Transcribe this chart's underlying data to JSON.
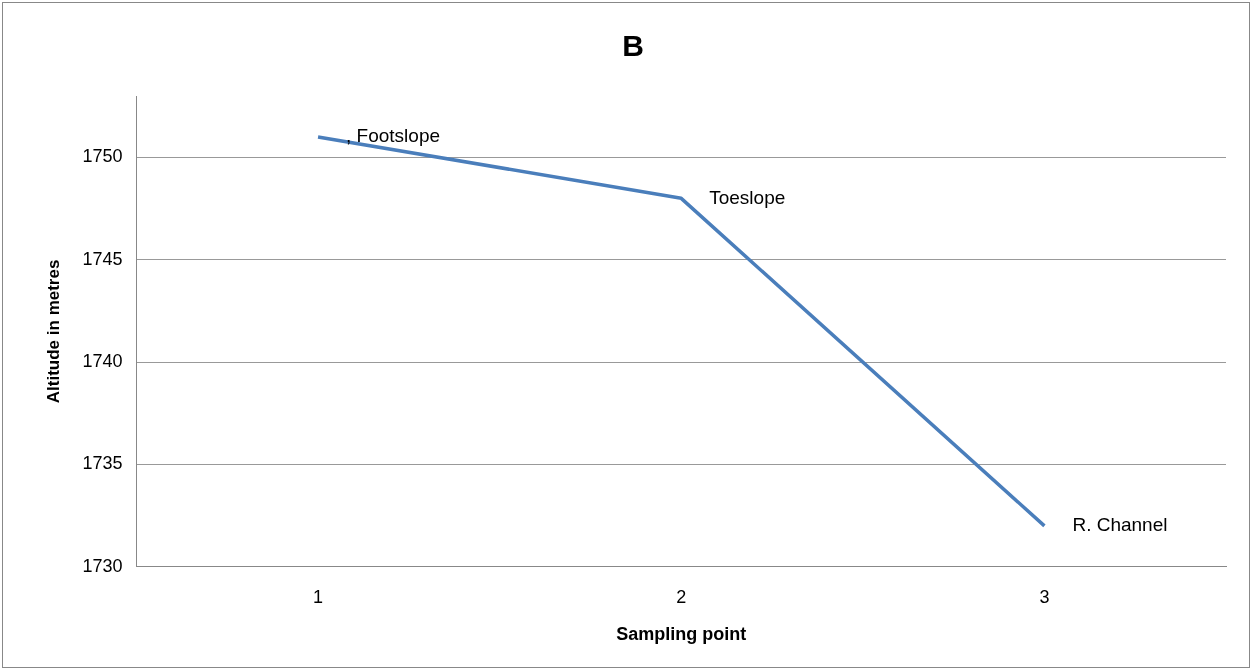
{
  "chart_data": {
    "type": "line",
    "title": "B",
    "xlabel": "Sampling point",
    "ylabel": "Altitude in metres",
    "categories": [
      "1",
      "2",
      "3"
    ],
    "series": [
      {
        "color": "#4a7ebb",
        "values": [
          1751,
          1748,
          1732
        ]
      }
    ],
    "ylim": [
      1730,
      1753
    ],
    "yticks": [
      1730,
      1735,
      1740,
      1745,
      1750
    ],
    "grid": "y",
    "legend": false,
    "marker": "none",
    "line_style": "solid",
    "annotations": [
      {
        "text": ", Footslope",
        "x": "1",
        "y": 1751
      },
      {
        "text": "Toeslope",
        "x": "2",
        "y": 1748
      },
      {
        "text": "R. Channel",
        "x": "3",
        "y": 1732
      }
    ]
  }
}
